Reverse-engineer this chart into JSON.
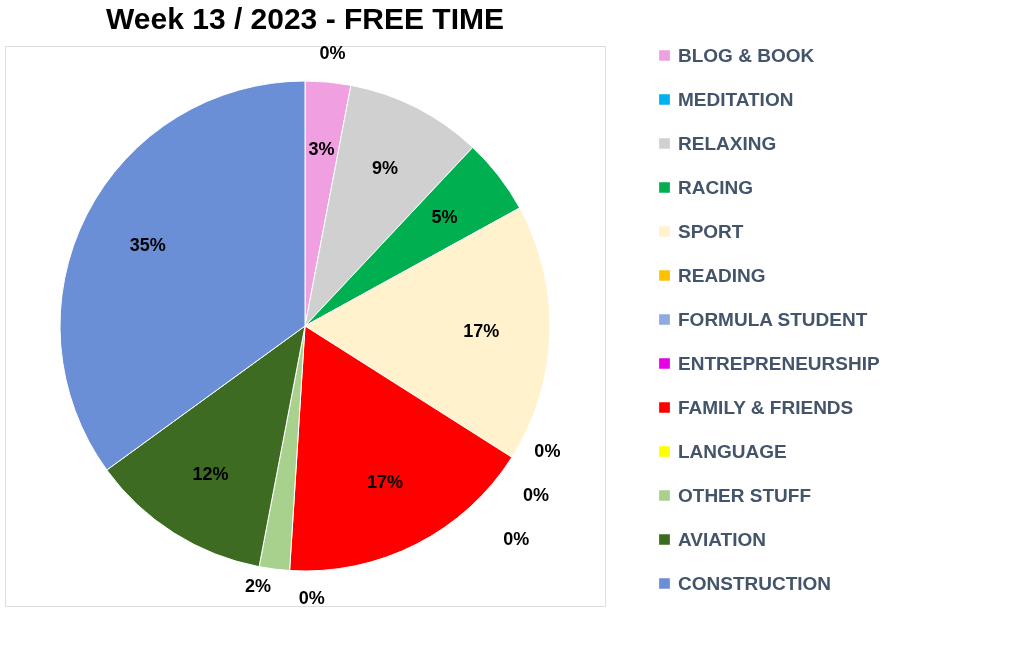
{
  "chart_data": {
    "type": "pie",
    "title": "Week 13 / 2023 - FREE TIME",
    "categories": [
      "BLOG & BOOK",
      "MEDITATION",
      "RELAXING",
      "RACING",
      "SPORT",
      "READING",
      "FORMULA STUDENT",
      "ENTREPRENEURSHIP",
      "FAMILY & FRIENDS",
      "LANGUAGE",
      "OTHER STUFF",
      "AVIATION",
      "CONSTRUCTION"
    ],
    "values": [
      3,
      0,
      9,
      5,
      17,
      0,
      0,
      0,
      17,
      0,
      2,
      12,
      35
    ],
    "colors": [
      "#f0a0e0",
      "#00b0f0",
      "#d0d0d0",
      "#00b050",
      "#fff2cc",
      "#ffc000",
      "#8faadc",
      "#e600e6",
      "#ff0000",
      "#ffff00",
      "#a9d18e",
      "#3d6b22",
      "#6a8fd6"
    ],
    "value_labels": [
      "3%",
      "0%",
      "9%",
      "5%",
      "17%",
      "0%",
      "0%",
      "0%",
      "17%",
      "0%",
      "2%",
      "12%",
      "35%"
    ],
    "legend": "right"
  }
}
